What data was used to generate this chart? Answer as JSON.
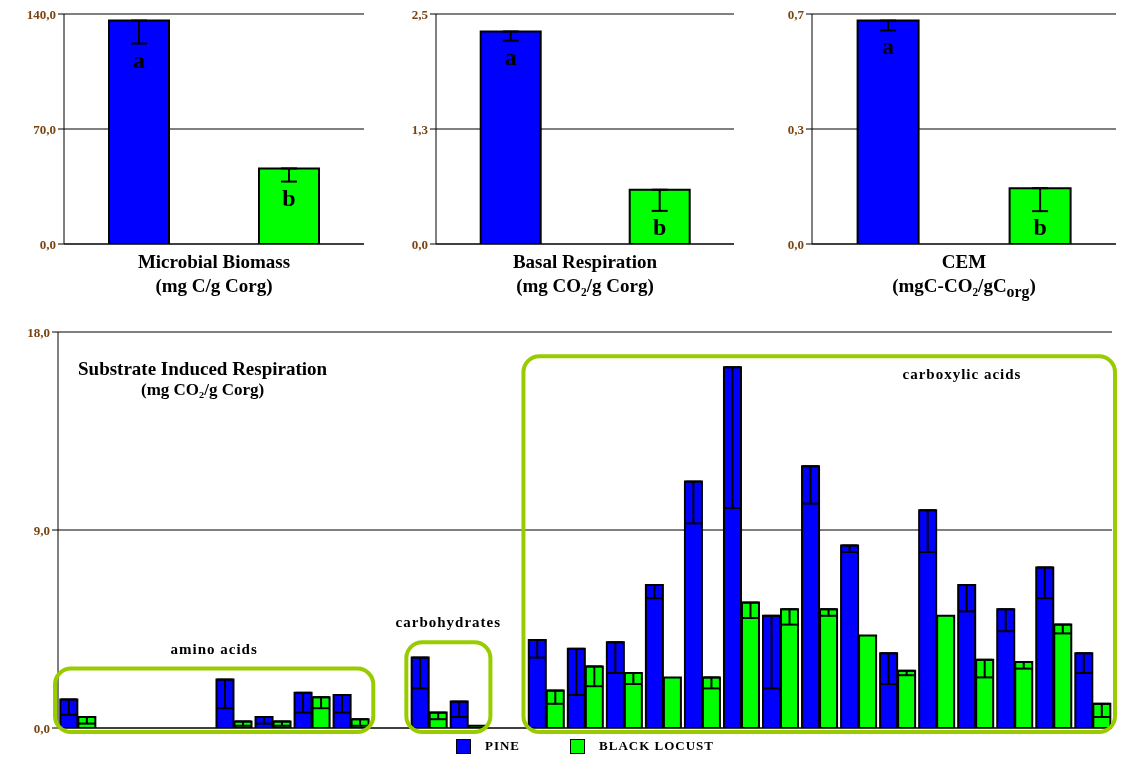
{
  "chart_data": [
    {
      "type": "bar",
      "xlabel": "Microbial Biomass\n(mg C/g Corg)",
      "categories": [
        null,
        null
      ],
      "values": [
        136,
        46
      ],
      "colors": [
        "#0000ff",
        "#00ff00"
      ],
      "errors": [
        [
          122,
          136
        ],
        [
          38,
          46
        ]
      ],
      "value_labels": [
        "a",
        "b"
      ],
      "ylim": [
        0,
        140
      ],
      "yticks": [
        {
          "value": 0,
          "label": "0,0"
        },
        {
          "value": 70,
          "label": "70,0"
        },
        {
          "value": 140,
          "label": "140,0"
        }
      ],
      "grid": "y"
    },
    {
      "type": "bar",
      "xlabel": "Basal Respiration\n(mg CO₂/g Corg)",
      "categories": [
        null,
        null
      ],
      "values": [
        2.31,
        0.59
      ],
      "colors": [
        "#0000ff",
        "#00ff00"
      ],
      "errors": [
        [
          2.21,
          2.31
        ],
        [
          0.36,
          0.59
        ]
      ],
      "value_labels": [
        "a",
        "b"
      ],
      "ylim": [
        0,
        2.5
      ],
      "yticks": [
        {
          "value": 0,
          "label": "0,0"
        },
        {
          "value": 1.25,
          "label": "1,3"
        },
        {
          "value": 2.5,
          "label": "2,5"
        }
      ],
      "grid": "y"
    },
    {
      "type": "bar",
      "xlabel": "CEM\n(mgC-CO₂/gC$_{org}$)",
      "categories": [
        null,
        null
      ],
      "values": [
        0.68,
        0.17
      ],
      "colors": [
        "#0000ff",
        "#00ff00"
      ],
      "errors": [
        [
          0.65,
          0.68
        ],
        [
          0.1,
          0.17
        ]
      ],
      "value_labels": [
        "a",
        "b"
      ],
      "ylim": [
        0,
        0.7
      ],
      "yticks": [
        {
          "value": 0,
          "label": "0,0"
        },
        {
          "value": 0.35,
          "label": "0,3"
        },
        {
          "value": 0.7,
          "label": "0,7"
        }
      ],
      "grid": "y"
    },
    {
      "type": "bar",
      "title": "Substrate Induced Respiration",
      "subtitle": "(mg CO₂/g Corg)",
      "categories": [
        null,
        null,
        null,
        null,
        null,
        null,
        null,
        null,
        null,
        null,
        null,
        null,
        null,
        null,
        null,
        null,
        null,
        null,
        null,
        null,
        null,
        null,
        null,
        null,
        null,
        null,
        null
      ],
      "series": [
        {
          "name": "PINE",
          "color": "#0000ff",
          "values": [
            1.3,
            null,
            null,
            null,
            2.2,
            0.5,
            1.6,
            1.5,
            null,
            3.2,
            1.2,
            null,
            4.0,
            3.6,
            3.9,
            6.5,
            11.2,
            16.4,
            5.1,
            11.9,
            8.3,
            3.4,
            9.9,
            6.5,
            5.4,
            7.3,
            3.4
          ],
          "errors": [
            [
              0.6,
              1.3
            ],
            null,
            null,
            null,
            [
              0.9,
              2.2
            ],
            [
              0.2,
              0.5
            ],
            [
              0.7,
              1.6
            ],
            [
              0.7,
              1.5
            ],
            null,
            [
              1.8,
              3.2
            ],
            [
              0.5,
              1.2
            ],
            null,
            [
              3.2,
              4.0
            ],
            [
              1.5,
              3.6
            ],
            [
              2.5,
              3.9
            ],
            [
              5.9,
              6.5
            ],
            [
              9.3,
              11.2
            ],
            [
              10.0,
              16.4
            ],
            [
              1.8,
              5.1
            ],
            [
              10.2,
              11.9
            ],
            [
              8.0,
              8.3
            ],
            [
              2.0,
              3.4
            ],
            [
              8.0,
              9.9
            ],
            [
              5.3,
              6.5
            ],
            [
              4.4,
              5.4
            ],
            [
              5.9,
              7.3
            ],
            [
              2.5,
              3.4
            ]
          ]
        },
        {
          "name": "BLACK LOCUST",
          "color": "#00ff00",
          "values": [
            0.5,
            null,
            null,
            null,
            0.3,
            0.3,
            1.4,
            0.4,
            null,
            0.7,
            0.1,
            null,
            1.7,
            2.8,
            2.5,
            2.3,
            2.3,
            5.7,
            5.4,
            5.4,
            4.2,
            2.6,
            5.1,
            3.1,
            3.0,
            4.7,
            1.1
          ],
          "errors": [
            [
              0.2,
              0.5
            ],
            null,
            null,
            null,
            [
              0.1,
              0.3
            ],
            [
              0.1,
              0.3
            ],
            [
              0.9,
              1.4
            ],
            [
              0.1,
              0.4
            ],
            null,
            [
              0.4,
              0.7
            ],
            null,
            null,
            [
              1.1,
              1.7
            ],
            [
              1.9,
              2.8
            ],
            [
              2.0,
              2.5
            ],
            null,
            [
              1.8,
              2.3
            ],
            [
              5.0,
              5.7
            ],
            [
              4.7,
              5.4
            ],
            [
              5.1,
              5.4
            ],
            null,
            [
              2.4,
              2.6
            ],
            null,
            [
              2.3,
              3.1
            ],
            [
              2.7,
              3.0
            ],
            [
              4.3,
              4.7
            ],
            [
              0.5,
              1.1
            ]
          ]
        }
      ],
      "ylim": [
        0,
        18
      ],
      "yticks": [
        {
          "value": 0,
          "label": "0,0"
        },
        {
          "value": 9,
          "label": "9,0"
        },
        {
          "value": 18,
          "label": "18,0"
        }
      ],
      "grid": "y",
      "legend": "bottom",
      "annotations": [
        "amino acids",
        "carbohydrates",
        "carboxylic acids"
      ]
    }
  ]
}
